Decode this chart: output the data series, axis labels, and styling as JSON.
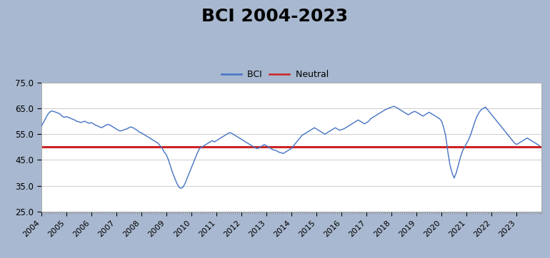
{
  "title": "BCI 2004-2023",
  "title_fontsize": 18,
  "title_fontweight": "bold",
  "neutral_value": 50.0,
  "neutral_color": "#cc2222",
  "bci_color": "#4472c4",
  "background_outer": "#a8b8d0",
  "background_inner": "#ffffff",
  "ylim": [
    25.0,
    75.0
  ],
  "yticks": [
    25.0,
    35.0,
    45.0,
    55.0,
    65.0,
    75.0
  ],
  "legend_fontsize": 9,
  "bci_values": [
    58.0,
    59.5,
    61.0,
    62.5,
    63.5,
    64.0,
    63.8,
    63.5,
    63.2,
    62.8,
    62.0,
    61.5,
    61.8,
    61.5,
    61.2,
    60.8,
    60.5,
    60.0,
    59.8,
    59.5,
    59.8,
    60.0,
    59.5,
    59.2,
    59.5,
    59.0,
    58.5,
    58.2,
    57.8,
    57.5,
    58.0,
    58.5,
    58.8,
    58.5,
    58.0,
    57.5,
    57.0,
    56.5,
    56.2,
    56.5,
    56.8,
    57.0,
    57.5,
    57.8,
    57.5,
    57.0,
    56.5,
    55.8,
    55.5,
    55.0,
    54.5,
    54.0,
    53.5,
    53.0,
    52.5,
    52.0,
    51.5,
    50.5,
    49.5,
    48.0,
    47.0,
    45.0,
    42.5,
    40.0,
    38.0,
    36.0,
    34.5,
    34.0,
    34.5,
    36.0,
    38.0,
    40.0,
    42.0,
    44.0,
    46.0,
    48.0,
    49.5,
    50.0,
    50.5,
    51.0,
    51.5,
    52.0,
    52.5,
    52.0,
    52.5,
    53.0,
    53.5,
    54.0,
    54.5,
    55.0,
    55.5,
    55.5,
    55.0,
    54.5,
    54.0,
    53.5,
    53.0,
    52.5,
    52.0,
    51.5,
    51.0,
    50.5,
    50.0,
    49.5,
    49.5,
    50.0,
    50.5,
    51.0,
    50.5,
    50.0,
    49.5,
    49.0,
    48.8,
    48.5,
    48.0,
    47.8,
    47.5,
    48.0,
    48.5,
    49.0,
    49.5,
    50.5,
    51.5,
    52.5,
    53.5,
    54.5,
    55.0,
    55.5,
    56.0,
    56.5,
    57.0,
    57.5,
    57.0,
    56.5,
    56.0,
    55.5,
    55.0,
    55.5,
    56.0,
    56.5,
    57.0,
    57.5,
    57.0,
    56.5,
    56.8,
    57.0,
    57.5,
    58.0,
    58.5,
    59.0,
    59.5,
    60.0,
    60.5,
    60.0,
    59.5,
    59.0,
    59.5,
    60.0,
    61.0,
    61.5,
    62.0,
    62.5,
    63.0,
    63.5,
    64.0,
    64.5,
    64.8,
    65.2,
    65.5,
    65.8,
    65.5,
    65.0,
    64.5,
    64.0,
    63.5,
    63.0,
    62.5,
    63.0,
    63.5,
    63.8,
    63.5,
    63.0,
    62.5,
    62.0,
    62.5,
    63.0,
    63.5,
    63.0,
    62.5,
    62.0,
    61.5,
    61.0,
    60.0,
    57.5,
    54.0,
    48.0,
    43.0,
    40.0,
    38.0,
    40.0,
    43.0,
    46.0,
    48.5,
    50.0,
    51.5,
    53.0,
    55.0,
    57.5,
    60.0,
    62.0,
    63.5,
    64.5,
    65.0,
    65.5,
    64.5,
    63.5,
    62.5,
    61.5,
    60.5,
    59.5,
    58.5,
    57.5,
    56.5,
    55.5,
    54.5,
    53.5,
    52.5,
    51.5,
    51.0,
    51.5,
    52.0,
    52.5,
    53.0,
    53.5,
    53.0,
    52.5,
    52.0,
    51.5,
    51.0,
    50.5
  ],
  "start_year": 2004,
  "end_year": 2023,
  "xtick_years": [
    2004,
    2005,
    2006,
    2007,
    2008,
    2009,
    2010,
    2011,
    2012,
    2013,
    2014,
    2015,
    2016,
    2017,
    2018,
    2019,
    2020,
    2021,
    2022,
    2023
  ]
}
